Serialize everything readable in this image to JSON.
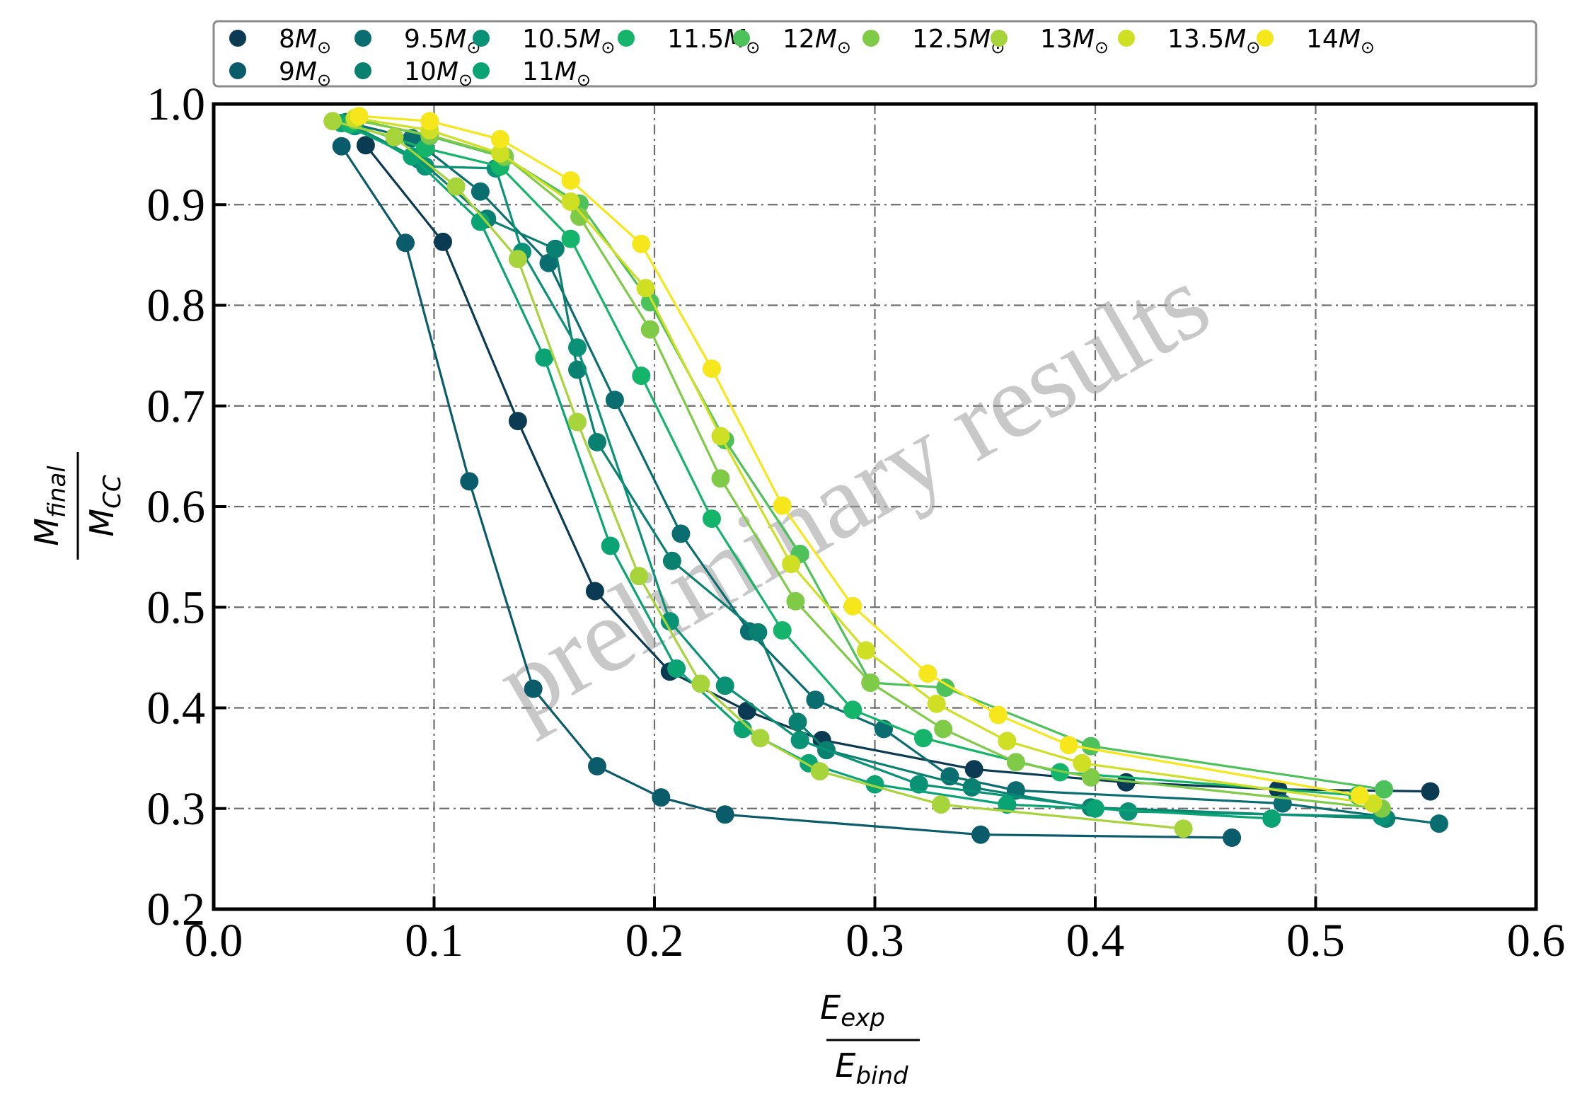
{
  "chart_data": {
    "type": "line",
    "title": "",
    "watermark": "preliminary results",
    "xlabel": {
      "numerator": "E",
      "numerator_sub": "exp",
      "denominator": "E",
      "denominator_sub": "bind"
    },
    "ylabel": {
      "numerator": "M",
      "numerator_sub": "final",
      "denominator": "M",
      "denominator_sub": "CC"
    },
    "xlim": [
      0.0,
      0.6
    ],
    "ylim": [
      0.2,
      1.0
    ],
    "xticks": [
      "0.0",
      "0.1",
      "0.2",
      "0.3",
      "0.4",
      "0.5",
      "0.6"
    ],
    "yticks": [
      "0.2",
      "0.3",
      "0.4",
      "0.5",
      "0.6",
      "0.7",
      "0.8",
      "0.9",
      "1.0"
    ],
    "grid": true,
    "legend_placement": "top",
    "legend_unit_symbol": "M",
    "legend_unit_sub": "⊙",
    "series": [
      {
        "name": "8",
        "color": "#0b3b52",
        "points": [
          [
            0.069,
            0.959
          ],
          [
            0.104,
            0.863
          ],
          [
            0.138,
            0.685
          ],
          [
            0.173,
            0.516
          ],
          [
            0.207,
            0.436
          ],
          [
            0.242,
            0.397
          ],
          [
            0.276,
            0.368
          ],
          [
            0.345,
            0.339
          ],
          [
            0.414,
            0.326
          ],
          [
            0.483,
            0.319
          ],
          [
            0.552,
            0.317
          ]
        ]
      },
      {
        "name": "9",
        "color": "#0b5c6b",
        "points": [
          [
            0.058,
            0.958
          ],
          [
            0.087,
            0.862
          ],
          [
            0.116,
            0.625
          ],
          [
            0.145,
            0.419
          ],
          [
            0.174,
            0.342
          ],
          [
            0.203,
            0.311
          ],
          [
            0.232,
            0.294
          ],
          [
            0.348,
            0.274
          ],
          [
            0.462,
            0.271
          ]
        ]
      },
      {
        "name": "9.5",
        "color": "#0a6e71",
        "points": [
          [
            0.06,
            0.982
          ],
          [
            0.09,
            0.966
          ],
          [
            0.121,
            0.913
          ],
          [
            0.152,
            0.842
          ],
          [
            0.182,
            0.706
          ],
          [
            0.212,
            0.573
          ],
          [
            0.243,
            0.476
          ],
          [
            0.273,
            0.408
          ],
          [
            0.304,
            0.379
          ],
          [
            0.334,
            0.332
          ],
          [
            0.364,
            0.318
          ],
          [
            0.485,
            0.305
          ],
          [
            0.556,
            0.285
          ]
        ]
      },
      {
        "name": "10",
        "color": "#0a8070",
        "points": [
          [
            0.062,
            0.98
          ],
          [
            0.093,
            0.945
          ],
          [
            0.124,
            0.886
          ],
          [
            0.155,
            0.856
          ],
          [
            0.165,
            0.736
          ],
          [
            0.174,
            0.664
          ],
          [
            0.208,
            0.546
          ],
          [
            0.247,
            0.475
          ],
          [
            0.265,
            0.386
          ],
          [
            0.278,
            0.358
          ],
          [
            0.344,
            0.321
          ],
          [
            0.398,
            0.301
          ],
          [
            0.532,
            0.29
          ]
        ]
      },
      {
        "name": "10.5",
        "color": "#099276",
        "points": [
          [
            0.064,
            0.978
          ],
          [
            0.096,
            0.938
          ],
          [
            0.128,
            0.936
          ],
          [
            0.14,
            0.853
          ],
          [
            0.165,
            0.758
          ],
          [
            0.207,
            0.486
          ],
          [
            0.232,
            0.422
          ],
          [
            0.266,
            0.368
          ],
          [
            0.32,
            0.324
          ],
          [
            0.415,
            0.297
          ],
          [
            0.53,
            0.292
          ]
        ]
      },
      {
        "name": "11",
        "color": "#0aa374",
        "points": [
          [
            0.058,
            0.981
          ],
          [
            0.09,
            0.948
          ],
          [
            0.121,
            0.883
          ],
          [
            0.15,
            0.748
          ],
          [
            0.18,
            0.561
          ],
          [
            0.21,
            0.439
          ],
          [
            0.24,
            0.379
          ],
          [
            0.27,
            0.345
          ],
          [
            0.3,
            0.324
          ],
          [
            0.36,
            0.304
          ],
          [
            0.4,
            0.3
          ],
          [
            0.48,
            0.29
          ]
        ]
      },
      {
        "name": "11.5",
        "color": "#14b46a",
        "points": [
          [
            0.062,
            0.98
          ],
          [
            0.096,
            0.956
          ],
          [
            0.13,
            0.938
          ],
          [
            0.162,
            0.866
          ],
          [
            0.194,
            0.73
          ],
          [
            0.226,
            0.588
          ],
          [
            0.258,
            0.477
          ],
          [
            0.29,
            0.398
          ],
          [
            0.322,
            0.37
          ],
          [
            0.384,
            0.336
          ],
          [
            0.519,
            0.313
          ]
        ]
      },
      {
        "name": "12",
        "color": "#4dc15a",
        "points": [
          [
            0.064,
            0.985
          ],
          [
            0.098,
            0.968
          ],
          [
            0.132,
            0.947
          ],
          [
            0.166,
            0.901
          ],
          [
            0.198,
            0.803
          ],
          [
            0.232,
            0.666
          ],
          [
            0.266,
            0.553
          ],
          [
            0.298,
            0.425
          ],
          [
            0.332,
            0.42
          ],
          [
            0.398,
            0.362
          ],
          [
            0.531,
            0.319
          ]
        ]
      },
      {
        "name": "12.5",
        "color": "#7fcb47",
        "points": [
          [
            0.064,
            0.984
          ],
          [
            0.098,
            0.969
          ],
          [
            0.132,
            0.948
          ],
          [
            0.166,
            0.888
          ],
          [
            0.198,
            0.776
          ],
          [
            0.23,
            0.628
          ],
          [
            0.264,
            0.506
          ],
          [
            0.298,
            0.425
          ],
          [
            0.331,
            0.379
          ],
          [
            0.364,
            0.346
          ],
          [
            0.398,
            0.331
          ],
          [
            0.53,
            0.3
          ]
        ]
      },
      {
        "name": "13",
        "color": "#a7d43a",
        "points": [
          [
            0.054,
            0.983
          ],
          [
            0.082,
            0.967
          ],
          [
            0.11,
            0.918
          ],
          [
            0.138,
            0.846
          ],
          [
            0.165,
            0.684
          ],
          [
            0.193,
            0.531
          ],
          [
            0.221,
            0.424
          ],
          [
            0.248,
            0.37
          ],
          [
            0.275,
            0.337
          ],
          [
            0.33,
            0.304
          ],
          [
            0.44,
            0.28
          ]
        ]
      },
      {
        "name": "13.5",
        "color": "#cfe024",
        "points": [
          [
            0.064,
            0.986
          ],
          [
            0.098,
            0.974
          ],
          [
            0.13,
            0.951
          ],
          [
            0.162,
            0.903
          ],
          [
            0.196,
            0.817
          ],
          [
            0.23,
            0.67
          ],
          [
            0.262,
            0.543
          ],
          [
            0.296,
            0.457
          ],
          [
            0.328,
            0.404
          ],
          [
            0.36,
            0.367
          ],
          [
            0.394,
            0.345
          ],
          [
            0.526,
            0.305
          ]
        ]
      },
      {
        "name": "14",
        "color": "#f5e71c",
        "points": [
          [
            0.066,
            0.988
          ],
          [
            0.098,
            0.983
          ],
          [
            0.13,
            0.965
          ],
          [
            0.162,
            0.924
          ],
          [
            0.194,
            0.861
          ],
          [
            0.226,
            0.737
          ],
          [
            0.258,
            0.601
          ],
          [
            0.29,
            0.501
          ],
          [
            0.324,
            0.434
          ],
          [
            0.356,
            0.393
          ],
          [
            0.388,
            0.363
          ],
          [
            0.52,
            0.313
          ]
        ]
      }
    ]
  }
}
